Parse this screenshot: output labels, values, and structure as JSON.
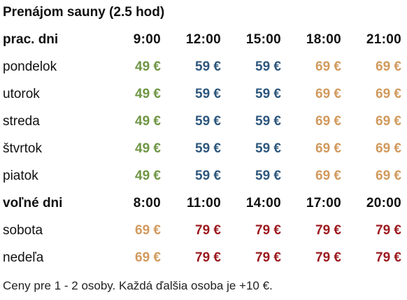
{
  "title": "Prenájom sauny (2.5 hod)",
  "colors": {
    "green": "#6f9645",
    "blue": "#2e577d",
    "orange": "#d19a5d",
    "red": "#9c1a1f"
  },
  "sections": [
    {
      "label": "prac. dni",
      "times": [
        "9:00",
        "12:00",
        "15:00",
        "18:00",
        "21:00"
      ],
      "price_colors": [
        "green",
        "blue",
        "blue",
        "orange",
        "orange"
      ],
      "rows": [
        {
          "day": "pondelok",
          "prices": [
            "49 €",
            "59 €",
            "59 €",
            "69 €",
            "69 €"
          ]
        },
        {
          "day": "utorok",
          "prices": [
            "49 €",
            "59 €",
            "59 €",
            "69 €",
            "69 €"
          ]
        },
        {
          "day": "streda",
          "prices": [
            "49 €",
            "59 €",
            "59 €",
            "69 €",
            "69 €"
          ]
        },
        {
          "day": "štvrtok",
          "prices": [
            "49 €",
            "59 €",
            "59 €",
            "69 €",
            "69 €"
          ]
        },
        {
          "day": "piatok",
          "prices": [
            "49 €",
            "59 €",
            "59 €",
            "69 €",
            "69 €"
          ]
        }
      ]
    },
    {
      "label": "voľné dni",
      "times": [
        "8:00",
        "11:00",
        "14:00",
        "17:00",
        "20:00"
      ],
      "price_colors": [
        "orange",
        "red",
        "red",
        "red",
        "red"
      ],
      "rows": [
        {
          "day": "sobota",
          "prices": [
            "69 €",
            "79 €",
            "79 €",
            "79 €",
            "79 €"
          ]
        },
        {
          "day": "nedeľa",
          "prices": [
            "69 €",
            "79 €",
            "79 €",
            "79 €",
            "79 €"
          ]
        }
      ]
    }
  ],
  "footnote": "Ceny pre 1 - 2 osoby. Každá ďalšia osoba je +10 €."
}
